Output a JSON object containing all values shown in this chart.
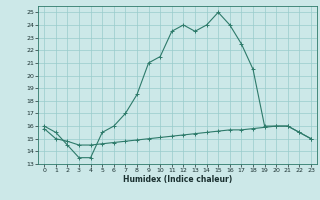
{
  "title": "",
  "xlabel": "Humidex (Indice chaleur)",
  "x": [
    0,
    1,
    2,
    3,
    4,
    5,
    6,
    7,
    8,
    9,
    10,
    11,
    12,
    13,
    14,
    15,
    16,
    17,
    18,
    19,
    20,
    21,
    22,
    23
  ],
  "y_upper": [
    16.0,
    15.5,
    14.5,
    13.5,
    13.5,
    15.5,
    16.0,
    17.0,
    18.5,
    21.0,
    21.5,
    23.5,
    24.0,
    23.5,
    24.0,
    25.0,
    24.0,
    22.5,
    20.5,
    16.0,
    16.0,
    16.0,
    15.5,
    15.0
  ],
  "y_lower": [
    15.8,
    15.0,
    14.8,
    14.5,
    14.5,
    14.6,
    14.7,
    14.8,
    14.9,
    15.0,
    15.1,
    15.2,
    15.3,
    15.4,
    15.5,
    15.6,
    15.7,
    15.7,
    15.8,
    15.9,
    16.0,
    16.0,
    15.5,
    15.0
  ],
  "ylim": [
    13,
    25.5
  ],
  "xlim": [
    -0.5,
    23.5
  ],
  "yticks": [
    13,
    14,
    15,
    16,
    17,
    18,
    19,
    20,
    21,
    22,
    23,
    24,
    25
  ],
  "xticks": [
    0,
    1,
    2,
    3,
    4,
    5,
    6,
    7,
    8,
    9,
    10,
    11,
    12,
    13,
    14,
    15,
    16,
    17,
    18,
    19,
    20,
    21,
    22,
    23
  ],
  "line_color": "#2d7a6a",
  "bg_color": "#cce8e8",
  "grid_color": "#99cccc",
  "spine_color": "#2d7a6a",
  "tick_color": "#1a3030",
  "xlabel_color": "#1a3030"
}
